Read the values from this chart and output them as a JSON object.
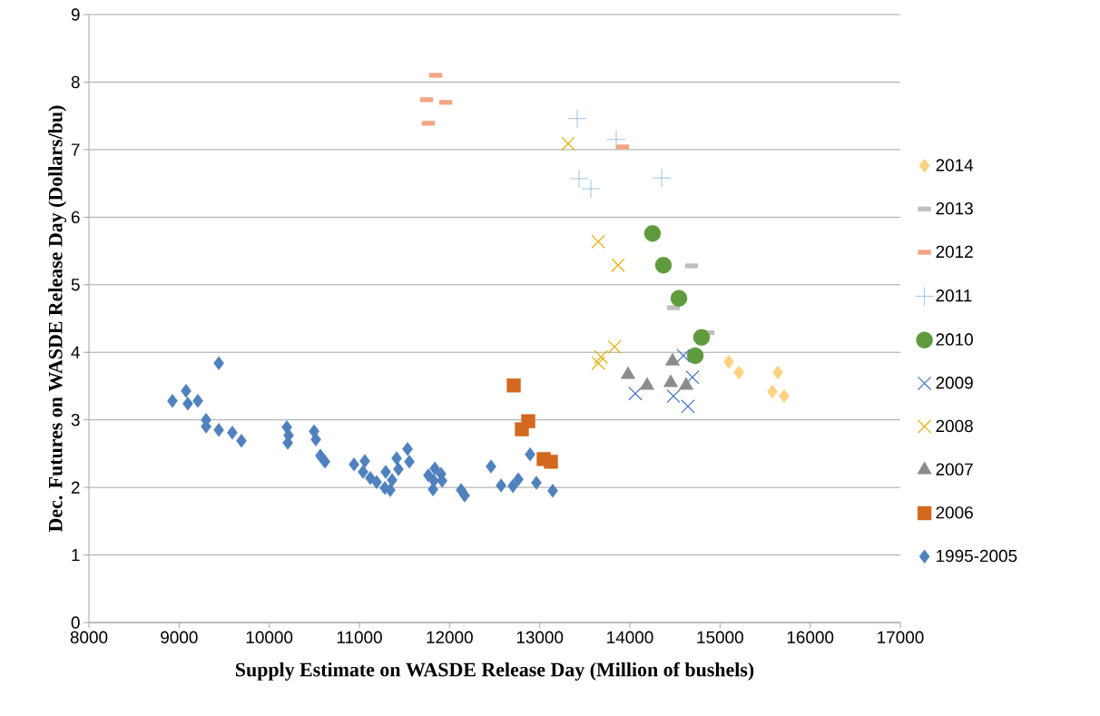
{
  "chart_data": {
    "type": "scatter",
    "xlabel": "Supply Estimate on WASDE Release Day (Million of bushels)",
    "ylabel": "Dec. Futures on WASDE Release Day (Dollars/bu)",
    "xlim": [
      8000,
      17000
    ],
    "ylim": [
      0,
      9
    ],
    "xticks": [
      8000,
      9000,
      10000,
      11000,
      12000,
      13000,
      14000,
      15000,
      16000,
      17000
    ],
    "yticks": [
      0,
      1,
      2,
      3,
      4,
      5,
      6,
      7,
      8,
      9
    ],
    "grid": "y",
    "legend": "right",
    "series": [
      {
        "name": "2014",
        "color": "#ffd280",
        "marker": "diamond",
        "x": [
          15097,
          15208,
          15641,
          15581,
          15711
        ],
        "values": [
          3.86,
          3.7,
          3.7,
          3.42,
          3.35
        ]
      },
      {
        "name": "2013",
        "color": "#bfbfbf",
        "x": [
          14684,
          14483,
          14866
        ],
        "values": [
          5.28,
          4.66,
          4.29
        ]
      },
      {
        "name": "2012",
        "color": "#f4a582",
        "x": [
          11846,
          11745,
          11957,
          11765,
          13919
        ],
        "values": [
          8.1,
          7.74,
          7.7,
          7.39,
          7.04
        ]
      },
      {
        "name": "2011",
        "color": "#9dc3e6",
        "marker": "plus",
        "x": [
          13416,
          13849,
          13436,
          13567,
          14352
        ],
        "values": [
          7.46,
          7.15,
          6.57,
          6.42,
          6.58
        ]
      },
      {
        "name": "2010",
        "color": "#5f9a3c",
        "marker": "circle",
        "x": [
          14251,
          14372,
          14544,
          14795,
          14725
        ],
        "values": [
          5.76,
          5.29,
          4.8,
          4.22,
          3.95
        ]
      },
      {
        "name": "2009",
        "color": "#4472c4",
        "marker": "cross",
        "x": [
          14060,
          14594,
          14694,
          14483,
          14644
        ],
        "values": [
          3.39,
          3.95,
          3.63,
          3.35,
          3.2
        ]
      },
      {
        "name": "2008",
        "color": "#e6ac00",
        "marker": "cross",
        "x": [
          13315,
          13648,
          13869,
          13829,
          13680,
          13650
        ],
        "values": [
          7.09,
          5.64,
          5.29,
          4.08,
          3.93,
          3.84
        ]
      },
      {
        "name": "2007",
        "color": "#8c8c8c",
        "marker": "triangle",
        "x": [
          13980,
          14191,
          14473,
          14453,
          14624
        ],
        "values": [
          3.67,
          3.51,
          3.87,
          3.55,
          3.51
        ]
      },
      {
        "name": "2006",
        "color": "#d2691e",
        "marker": "square",
        "x": [
          12712,
          12873,
          12802,
          13044,
          13124
        ],
        "values": [
          3.51,
          2.98,
          2.86,
          2.42,
          2.38
        ]
      },
      {
        "name": "1995-2005",
        "color": "#4f81bd",
        "marker": "diamond",
        "x": [
          8926,
          9077,
          9097,
          9208,
          9299,
          9299,
          9440,
          9440,
          9590,
          9691,
          10195,
          10215,
          10205,
          10497,
          10517,
          10567,
          10618,
          10940,
          11060,
          11040,
          11121,
          11191,
          11292,
          11282,
          11363,
          11342,
          11433,
          11534,
          11554,
          11413,
          11765,
          11836,
          11906,
          11816,
          11917,
          11826,
          12128,
          12168,
          12460,
          12571,
          12702,
          12762,
          12893,
          12963,
          13144
        ],
        "values": [
          3.28,
          3.43,
          3.24,
          3.28,
          3.0,
          2.9,
          2.85,
          3.84,
          2.81,
          2.69,
          2.89,
          2.77,
          2.66,
          2.83,
          2.71,
          2.47,
          2.38,
          2.34,
          2.39,
          2.23,
          2.14,
          2.08,
          2.23,
          1.99,
          2.11,
          1.96,
          2.27,
          2.57,
          2.38,
          2.43,
          2.18,
          2.28,
          2.2,
          1.97,
          2.1,
          2.1,
          1.96,
          1.88,
          2.31,
          2.03,
          2.02,
          2.12,
          2.49,
          2.07,
          1.95
        ]
      }
    ]
  }
}
